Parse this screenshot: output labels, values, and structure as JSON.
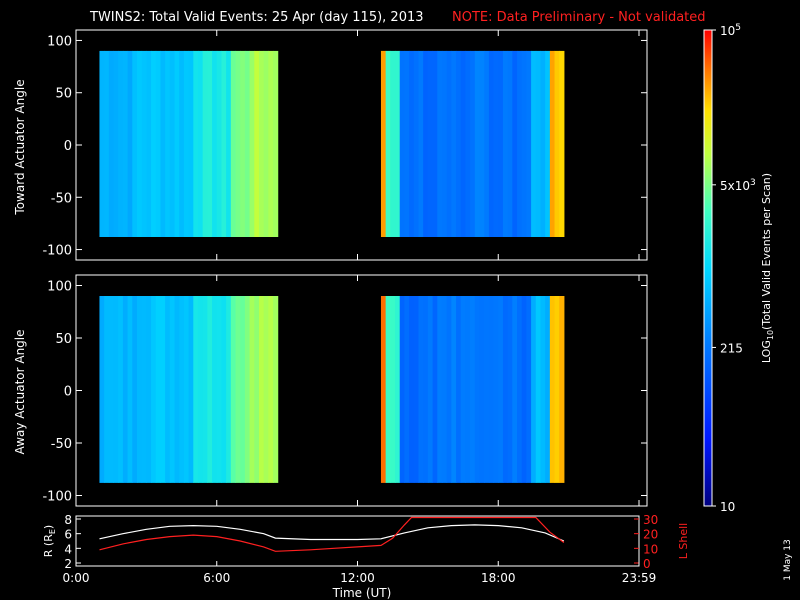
{
  "title": {
    "main": "TWINS2: Total Valid Events: 25 Apr (day 115), 2013",
    "note": "NOTE: Data Preliminary - Not validated"
  },
  "colors": {
    "background": "#000000",
    "note": "#ff2020",
    "r_line": "#ffffff",
    "lshell_line": "#ff2020"
  },
  "chart_data": [
    {
      "type": "heatmap",
      "name": "toward",
      "ylabel": "Toward Actuator Angle",
      "ylim": [
        -110,
        110
      ],
      "yticks": [
        100,
        50,
        0,
        -50,
        -100
      ],
      "xlim": [
        0,
        24
      ],
      "data_blocks": [
        {
          "x_start": 1.0,
          "x_end": 8.5,
          "y_start": -88,
          "y_end": 90
        },
        {
          "x_start": 13.0,
          "x_end": 20.8,
          "y_start": -88,
          "y_end": 90
        }
      ],
      "grid": false
    },
    {
      "type": "heatmap",
      "name": "away",
      "ylabel": "Away Actuator Angle",
      "ylim": [
        -110,
        110
      ],
      "yticks": [
        100,
        50,
        0,
        -50,
        -100
      ],
      "xlim": [
        0,
        24
      ],
      "data_blocks": [
        {
          "x_start": 1.0,
          "x_end": 8.5,
          "y_start": -88,
          "y_end": 90
        },
        {
          "x_start": 13.0,
          "x_end": 20.8,
          "y_start": -88,
          "y_end": 90
        }
      ],
      "grid": false
    },
    {
      "type": "line",
      "name": "orbit",
      "xlabel": "Time (UT)",
      "xticks": [
        "0:00",
        "6:00",
        "12:00",
        "18:00",
        "23:59"
      ],
      "xtick_values": [
        0,
        6,
        12,
        18,
        24
      ],
      "ylabel_left_parts": [
        "R (R",
        "E",
        ")"
      ],
      "yticks_left": [
        2,
        4,
        6,
        8
      ],
      "ylim_left": [
        2,
        8
      ],
      "ylabel_right": "L Shell",
      "yticks_right": [
        0,
        10,
        20,
        30
      ],
      "ylim_right": [
        0,
        30
      ],
      "series": [
        {
          "axis": "left",
          "x": [
            1,
            2,
            3,
            4,
            5,
            6,
            7,
            8,
            8.5,
            10,
            11,
            12,
            13,
            14,
            15,
            16,
            17,
            18,
            19,
            20,
            20.8
          ],
          "y": [
            5.3,
            6.0,
            6.6,
            7.0,
            7.1,
            7.0,
            6.6,
            6.0,
            5.4,
            5.2,
            5.2,
            5.2,
            5.3,
            6.1,
            6.8,
            7.1,
            7.2,
            7.1,
            6.8,
            6.1,
            5.0
          ]
        },
        {
          "axis": "right",
          "x": [
            1,
            2,
            3,
            4,
            5,
            6,
            7,
            8,
            8.5,
            10,
            11,
            12,
            13,
            13.5,
            14,
            14.3,
            19.6,
            20.2,
            20.8
          ],
          "y": [
            9,
            13,
            16,
            18,
            19,
            18,
            15,
            11,
            8,
            9,
            10,
            11,
            12,
            17,
            26,
            31,
            31,
            21,
            14
          ]
        }
      ]
    },
    {
      "type": "colorbar",
      "label_parts": [
        "LOG",
        "10",
        "(Total Valid  Events per Scan)"
      ],
      "scale": "log",
      "range": [
        10,
        100000
      ],
      "tick_labels": [
        {
          "value": 100000,
          "base": "10",
          "sup": "5"
        },
        {
          "value": 5000,
          "base": "5x10",
          "sup": "3"
        },
        {
          "value": 215,
          "base": "215",
          "sup": ""
        },
        {
          "value": 10,
          "base": "10",
          "sup": ""
        }
      ]
    }
  ],
  "date_stamp": "1 May 13"
}
